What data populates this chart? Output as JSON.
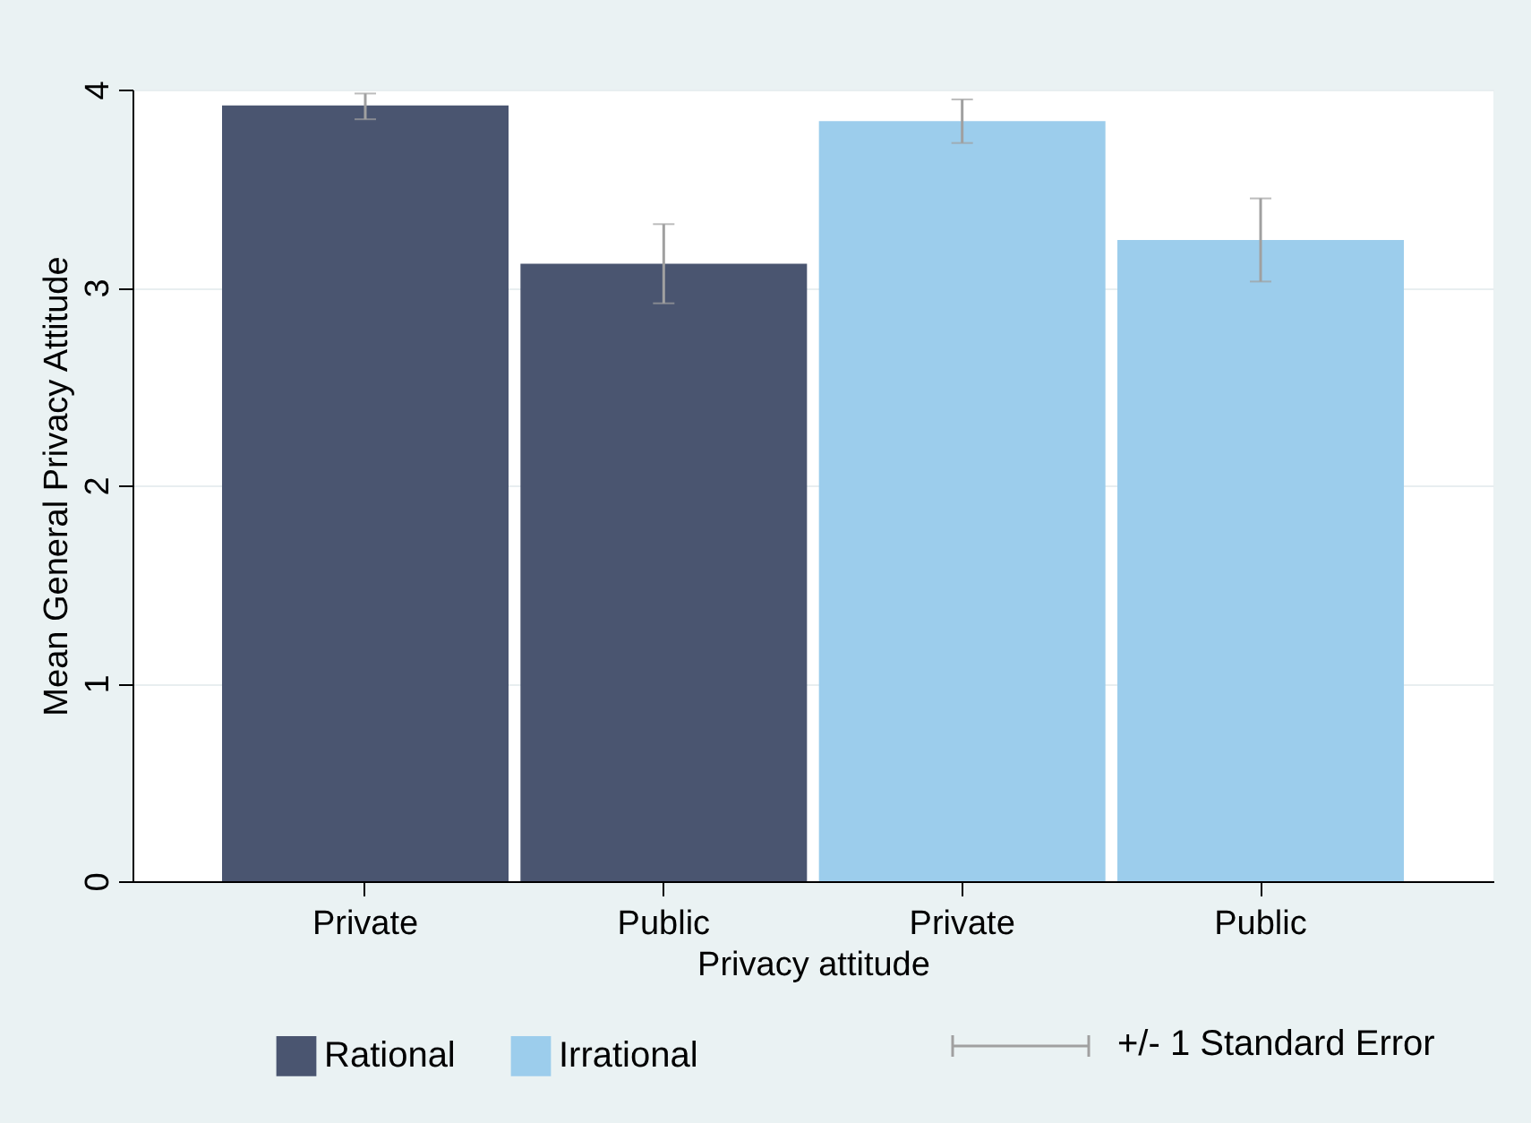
{
  "chart_data": {
    "type": "bar",
    "xlabel": "Privacy attitude",
    "ylabel": "Mean General Privacy Attitude",
    "categories": [
      "Private",
      "Public",
      "Private",
      "Public"
    ],
    "series": [
      {
        "name": "Rational",
        "color": "#4a5570",
        "values": [
          3.92,
          3.12,
          null,
          null
        ],
        "errors": [
          [
            3.85,
            3.98
          ],
          [
            2.92,
            3.32
          ],
          null,
          null
        ]
      },
      {
        "name": "Irrational",
        "color": "#9ccdec",
        "values": [
          null,
          null,
          3.84,
          3.24
        ],
        "errors": [
          null,
          null,
          [
            3.73,
            3.95
          ],
          [
            3.03,
            3.45
          ]
        ]
      }
    ],
    "ylim": [
      0,
      4
    ],
    "yticks": [
      0,
      1,
      2,
      3,
      4
    ],
    "grid": "y",
    "legend": "bottom",
    "annotations": [
      "+/- 1 Standard Error"
    ]
  }
}
